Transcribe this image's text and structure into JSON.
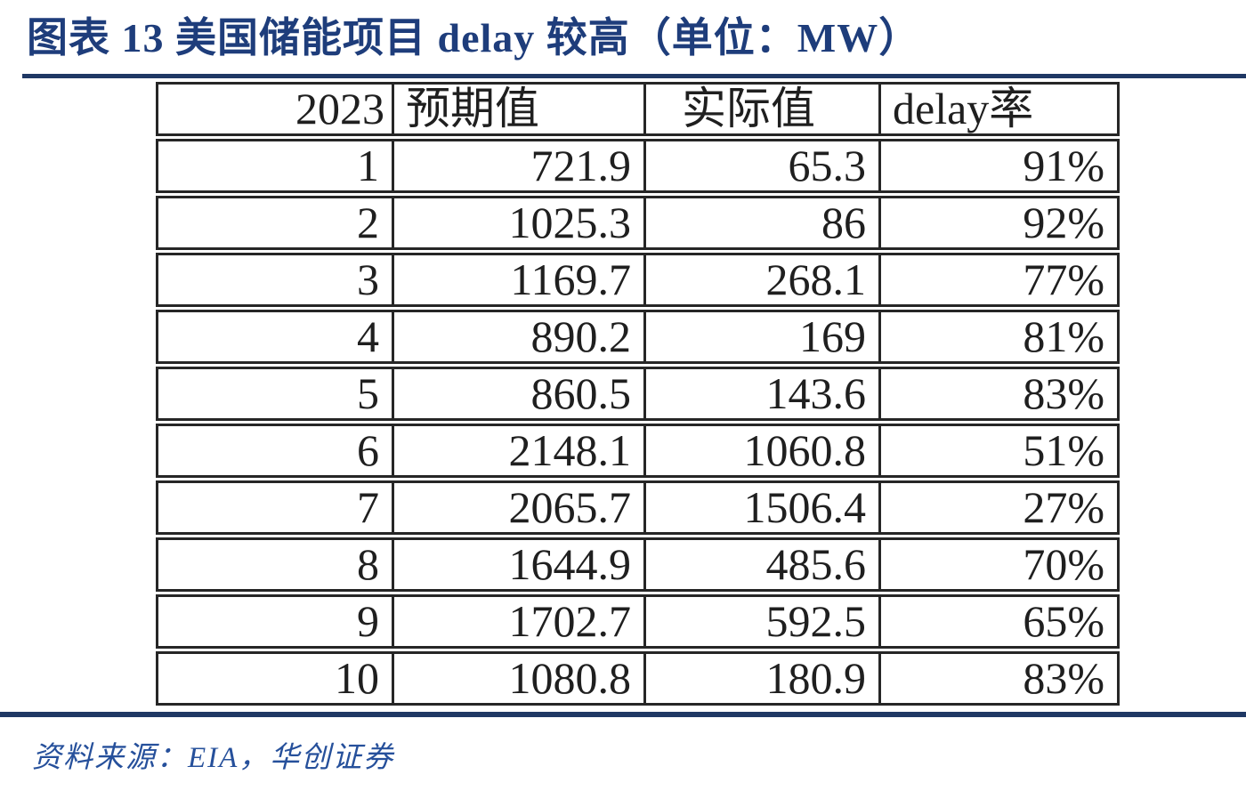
{
  "header": {
    "title": "图表 13 美国储能项目 delay 较高（单位：MW）"
  },
  "footer": {
    "source": "资料来源：EIA，华创证券"
  },
  "colors": {
    "navy": "#1f3864",
    "title": "#1e3d7b",
    "source": "#26509b",
    "border": "#262626",
    "text": "#1f1f1f",
    "background": "#ffffff"
  },
  "chart_data": {
    "type": "table",
    "title": "图表 13 美国储能项目 delay 较高（单位：MW）",
    "unit": "MW",
    "columns": [
      "2023",
      "预期值",
      "实际值",
      "delay率"
    ],
    "rows": [
      [
        "1",
        "721.9",
        "65.3",
        "91%"
      ],
      [
        "2",
        "1025.3",
        "86",
        "92%"
      ],
      [
        "3",
        "1169.7",
        "268.1",
        "77%"
      ],
      [
        "4",
        "890.2",
        "169",
        "81%"
      ],
      [
        "5",
        "860.5",
        "143.6",
        "83%"
      ],
      [
        "6",
        "2148.1",
        "1060.8",
        "51%"
      ],
      [
        "7",
        "2065.7",
        "1506.4",
        "27%"
      ],
      [
        "8",
        "1644.9",
        "485.6",
        "70%"
      ],
      [
        "9",
        "1702.7",
        "592.5",
        "65%"
      ],
      [
        "10",
        "1080.8",
        "180.9",
        "83%"
      ]
    ],
    "source": "资料来源：EIA，华创证券"
  }
}
